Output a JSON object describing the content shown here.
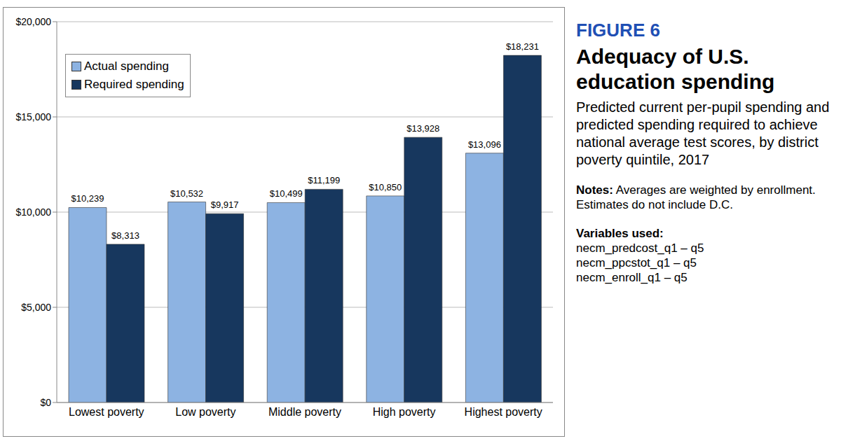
{
  "chart_data": {
    "type": "bar",
    "figure_label": "FIGURE 6",
    "title": "Adequacy of U.S. education spending",
    "subtitle": "Predicted current per-pupil spending and predicted spending required to achieve national average test scores, by district poverty quintile, 2017",
    "notes": {
      "label": "Notes:",
      "text": "Averages are weighted by enrollment. Estimates do not include D.C."
    },
    "variables": {
      "label": "Variables used:",
      "items": [
        "necm_predcost_q1 – q5",
        "necm_ppcstot_q1 – q5",
        "necm_enroll_q1 – q5"
      ]
    },
    "categories": [
      "Lowest poverty",
      "Low poverty",
      "Middle poverty",
      "High poverty",
      "Highest poverty"
    ],
    "series": [
      {
        "name": "Actual spending",
        "color": "#8db3e2",
        "values": [
          10239,
          10532,
          10499,
          10850,
          13096
        ],
        "value_labels": [
          "$10,239",
          "$10,532",
          "$10,499",
          "$10,850",
          "$13,096"
        ]
      },
      {
        "name": "Required spending",
        "color": "#17375e",
        "values": [
          8313,
          9917,
          11199,
          13928,
          18231
        ],
        "value_labels": [
          "$8,313",
          "$9,917",
          "$11,199",
          "$13,928",
          "$18,231"
        ]
      }
    ],
    "ylim": [
      0,
      20000
    ],
    "yticks": [
      {
        "value": 0,
        "label": "$0"
      },
      {
        "value": 5000,
        "label": "$5,000"
      },
      {
        "value": 10000,
        "label": "$10,000"
      },
      {
        "value": 15000,
        "label": "$15,000"
      },
      {
        "value": 20000,
        "label": "$20,000"
      }
    ],
    "grid": true,
    "legend": "upper left",
    "data_labels": true
  }
}
